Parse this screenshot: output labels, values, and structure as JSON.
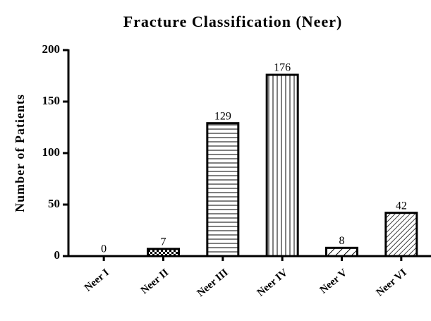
{
  "chart_data": {
    "type": "bar",
    "title": "Fracture Classification (Neer)",
    "y_label": "Number of Patients",
    "categories": [
      "Neer I",
      "Neer II",
      "Neer III",
      "Neer IV",
      "Neer V",
      "Neer VI"
    ],
    "values": [
      0,
      7,
      129,
      176,
      8,
      42
    ],
    "color": "#000000",
    "ylim": [
      0,
      200
    ],
    "yticks": [
      0,
      50,
      100,
      150,
      200
    ],
    "grid": false
  }
}
